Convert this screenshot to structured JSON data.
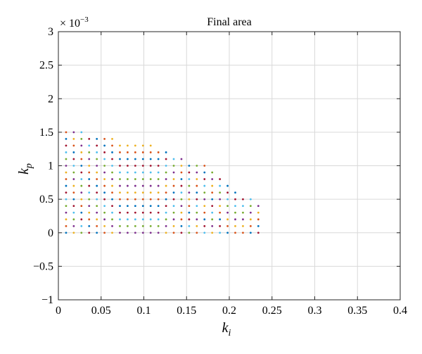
{
  "chart_data": {
    "type": "scatter",
    "title": "Final area",
    "xlabel": {
      "base": "k",
      "sub": "i"
    },
    "ylabel": {
      "base": "k",
      "sub": "p"
    },
    "y_exponent": {
      "prefix": "× 10",
      "power": "−3"
    },
    "xlim": [
      0,
      0.4
    ],
    "ylim": [
      -1,
      3
    ],
    "grid": true,
    "x_ticks": [
      0,
      0.05,
      0.1,
      0.15,
      0.2,
      0.25,
      0.3,
      0.35,
      0.4
    ],
    "x_tick_labels": [
      "0",
      "0.05",
      "0.1",
      "0.15",
      "0.2",
      "0.25",
      "0.3",
      "0.35",
      "0.4"
    ],
    "y_ticks": [
      -1,
      -0.5,
      0,
      0.5,
      1,
      1.5,
      2,
      2.5,
      3
    ],
    "y_tick_labels": [
      "−1",
      "−0.5",
      "0",
      "0.5",
      "1",
      "1.5",
      "2",
      "2.5",
      "3"
    ],
    "palette": [
      "#0072BD",
      "#D95319",
      "#EDB120",
      "#7E2F8E",
      "#77AC30",
      "#4DBEEE",
      "#A2142F"
    ],
    "point_grid": {
      "x_start": 0.009,
      "x_step": 0.009,
      "y_start": 0,
      "y_step": 0.1,
      "column_max_y": [
        1.5,
        1.5,
        1.5,
        1.4,
        1.4,
        1.4,
        1.4,
        1.3,
        1.3,
        1.3,
        1.3,
        1.3,
        1.2,
        1.2,
        1.1,
        1.1,
        1.0,
        1.0,
        1.0,
        0.9,
        0.8,
        0.7,
        0.6,
        0.5,
        0.5,
        0.4
      ]
    }
  }
}
